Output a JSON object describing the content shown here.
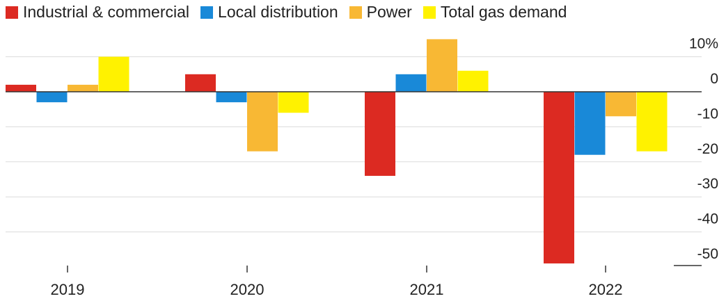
{
  "chart_data": {
    "type": "bar",
    "categories": [
      "2019",
      "2020",
      "2021",
      "2022"
    ],
    "series": [
      {
        "name": "Industrial & commercial",
        "color": "#dc2a22",
        "values": [
          2,
          5,
          -24,
          -49
        ]
      },
      {
        "name": "Local distribution",
        "color": "#1989d8",
        "values": [
          -3,
          -3,
          5,
          -18
        ]
      },
      {
        "name": "Power",
        "color": "#f8b834",
        "values": [
          2,
          -17,
          15,
          -7
        ]
      },
      {
        "name": "Total gas demand",
        "color": "#fff200",
        "values": [
          10,
          -6,
          6,
          -17
        ]
      }
    ],
    "yticks": [
      {
        "value": 10,
        "label": "10%"
      },
      {
        "value": 0,
        "label": "0"
      },
      {
        "value": -10,
        "label": "-10"
      },
      {
        "value": -20,
        "label": "-20"
      },
      {
        "value": -30,
        "label": "-30"
      },
      {
        "value": -40,
        "label": "-40"
      },
      {
        "value": -50,
        "label": "-50"
      }
    ],
    "ylim": [
      -50,
      15
    ],
    "grid": true,
    "legend_position": "top-left",
    "title": "",
    "xlabel": "",
    "ylabel": ""
  }
}
